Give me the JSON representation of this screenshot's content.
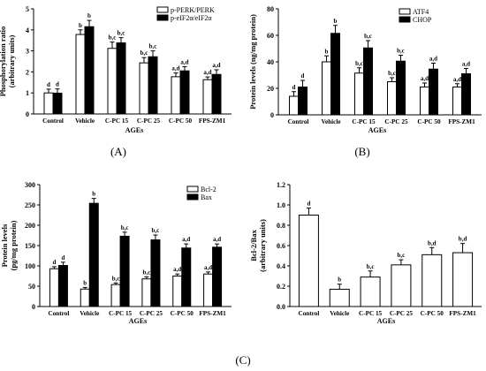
{
  "panel_labels": [
    "(A)",
    "(B)",
    "(C)"
  ],
  "chart_data": [
    {
      "type": "bar",
      "panel": "(A)",
      "ylabel": "Phosphorylation ratio\n(arbitrary units)",
      "xlabel": "AGEs",
      "ylim": [
        0,
        5
      ],
      "yticks": [
        0,
        1,
        2,
        3,
        4,
        5
      ],
      "categories": [
        "Control",
        "Vehicle",
        "C-PC 15",
        "C-PC 25",
        "C-PC 50",
        "FPS-ZM1"
      ],
      "legend_position": "top-right",
      "series": [
        {
          "name": "p-PERK/PERK",
          "color": "#ffffff",
          "values": [
            1.0,
            3.78,
            3.12,
            2.43,
            1.77,
            1.63
          ],
          "errors": [
            0.18,
            0.22,
            0.3,
            0.25,
            0.18,
            0.13
          ],
          "labels": [
            "d",
            "b",
            "b,c",
            "b,c",
            "a,d",
            "a,d"
          ]
        },
        {
          "name": "p-eIF2α/eIF2α",
          "color": "#000000",
          "values": [
            0.99,
            4.15,
            3.38,
            2.72,
            2.05,
            1.88
          ],
          "errors": [
            0.2,
            0.3,
            0.25,
            0.28,
            0.2,
            0.22
          ],
          "labels": [
            "d",
            "b",
            "b,c",
            "b,c",
            "a,d",
            "a,d"
          ]
        }
      ]
    },
    {
      "type": "bar",
      "panel": "(B)",
      "ylabel": "Protein levels (ng/mg protein)",
      "xlabel": "AGEs",
      "ylim": [
        0,
        80
      ],
      "yticks": [
        0,
        20,
        40,
        60,
        80
      ],
      "categories": [
        "Control",
        "Vehicle",
        "C-PC 15",
        "C-PC 25",
        "C-PC 50",
        "FPS-ZM1"
      ],
      "legend_position": "top-right",
      "series": [
        {
          "name": "ATF4",
          "color": "#ffffff",
          "values": [
            14,
            40,
            31.5,
            25,
            21,
            21
          ],
          "errors": [
            3.5,
            4.5,
            4,
            3,
            3,
            2.5
          ],
          "labels": [
            "d",
            "b",
            "b,c",
            "b,c",
            "a,d",
            "a,d"
          ]
        },
        {
          "name": "CHOP",
          "color": "#000000",
          "values": [
            21,
            61.5,
            50.5,
            40.5,
            34.5,
            31
          ],
          "errors": [
            5,
            6,
            5.5,
            4.5,
            4.5,
            4
          ],
          "labels": [
            "d",
            "b",
            "b,c",
            "b,c",
            "a,d",
            "a,d"
          ]
        }
      ]
    },
    {
      "type": "bar",
      "panel": "(C)",
      "ylabel": "Protein levels\n(pg/mg protein)",
      "xlabel": "AGEs",
      "ylim": [
        0,
        300
      ],
      "yticks": [
        0,
        50,
        100,
        150,
        200,
        250,
        300
      ],
      "categories": [
        "Control",
        "Vehicle",
        "C-PC 15",
        "C-PC 25",
        "C-PC 50",
        "FPS-ZM1"
      ],
      "legend_position": "top-right",
      "series": [
        {
          "name": "Bcl-2",
          "color": "#ffffff",
          "values": [
            93,
            43,
            54,
            68,
            75,
            80
          ],
          "errors": [
            5,
            4,
            4,
            5,
            5,
            5
          ],
          "labels": [
            "d",
            "b",
            "b,c",
            "b,c",
            "a,d",
            "a,d"
          ]
        },
        {
          "name": "Bax",
          "color": "#000000",
          "values": [
            101,
            254,
            173,
            164,
            144,
            146
          ],
          "errors": [
            8,
            12,
            10,
            12,
            10,
            8
          ],
          "labels": [
            "d",
            "b",
            "b,c",
            "b,c",
            "a,d",
            "a,d"
          ]
        }
      ]
    },
    {
      "type": "bar",
      "panel": "(C)",
      "ylabel": "Bcl-2/Bax\n(arbitrary units)",
      "xlabel": "AGEs",
      "ylim": [
        0,
        1.2
      ],
      "yticks": [
        0.0,
        0.2,
        0.4,
        0.6,
        0.8,
        1.0,
        1.2
      ],
      "ytick_labels": [
        "0.0",
        "0.2",
        "0.4",
        "0.6",
        "0.8",
        "1.0",
        "1.2"
      ],
      "categories": [
        "Control",
        "Vehicle",
        "C-PC 15",
        "C-PC 25",
        "C-PC 50",
        "FPS-ZM1"
      ],
      "series": [
        {
          "name": "",
          "color": "#ffffff",
          "values": [
            0.9,
            0.17,
            0.29,
            0.41,
            0.51,
            0.53
          ],
          "errors": [
            0.07,
            0.05,
            0.06,
            0.05,
            0.07,
            0.09
          ],
          "labels": [
            "d",
            "b",
            "b,c",
            "b,c",
            "b,d",
            "b,d"
          ]
        }
      ]
    }
  ]
}
